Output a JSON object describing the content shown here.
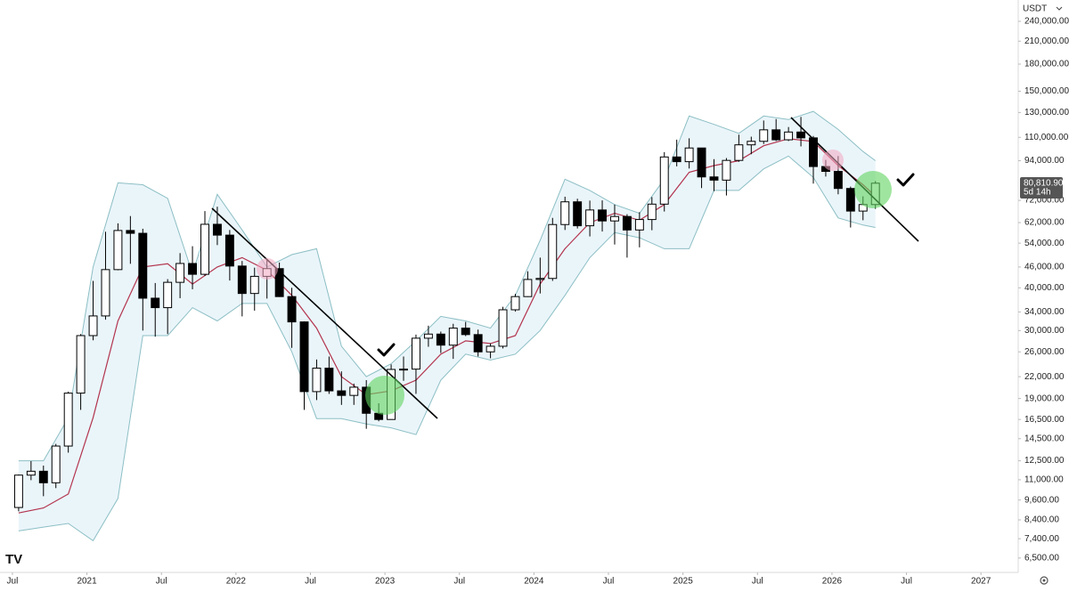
{
  "chart_data": {
    "type": "candlestick",
    "currency": "USDT",
    "log_scale": true,
    "up_color": "#ffffff",
    "down_color": "#000000",
    "last_price": {
      "value": 80810.9,
      "label": "80,810.90"
    },
    "countdown": "5d 14h",
    "xlim": [
      "2020-06",
      "2027-04"
    ],
    "ylim": [
      5900,
      277000
    ],
    "xticks": [
      {
        "value": "2020-07",
        "label": "Jul"
      },
      {
        "value": "2021-01",
        "label": "2021"
      },
      {
        "value": "2021-07",
        "label": "Jul"
      },
      {
        "value": "2022-01",
        "label": "2022"
      },
      {
        "value": "2022-07",
        "label": "Jul"
      },
      {
        "value": "2023-01",
        "label": "2023"
      },
      {
        "value": "2023-07",
        "label": "Jul"
      },
      {
        "value": "2024-01",
        "label": "2024"
      },
      {
        "value": "2024-07",
        "label": "Jul"
      },
      {
        "value": "2025-01",
        "label": "2025"
      },
      {
        "value": "2025-07",
        "label": "Jul"
      },
      {
        "value": "2026-01",
        "label": "2026"
      },
      {
        "value": "2026-07",
        "label": "Jul"
      },
      {
        "value": "2027-01",
        "label": "2027"
      }
    ],
    "yticks": [
      {
        "value": 240000,
        "label": "240,000.00"
      },
      {
        "value": 210000,
        "label": "210,000.00"
      },
      {
        "value": 180000,
        "label": "180,000.00"
      },
      {
        "value": 150000,
        "label": "150,000.00"
      },
      {
        "value": 130000,
        "label": "130,000.00"
      },
      {
        "value": 110000,
        "label": "110,000.00"
      },
      {
        "value": 94000,
        "label": "94,000.00"
      },
      {
        "value": 72000,
        "label": "72,000.00"
      },
      {
        "value": 62000,
        "label": "62,000.00"
      },
      {
        "value": 54000,
        "label": "54,000.00"
      },
      {
        "value": 46000,
        "label": "46,000.00"
      },
      {
        "value": 40000,
        "label": "40,000.00"
      },
      {
        "value": 34000,
        "label": "34,000.00"
      },
      {
        "value": 30000,
        "label": "30,000.00"
      },
      {
        "value": 26000,
        "label": "26,000.00"
      },
      {
        "value": 22000,
        "label": "22,000.00"
      },
      {
        "value": 19000,
        "label": "19,000.00"
      },
      {
        "value": 16500,
        "label": "16,500.00"
      },
      {
        "value": 14500,
        "label": "14,500.00"
      },
      {
        "value": 12500,
        "label": "12,500.00"
      },
      {
        "value": 11000,
        "label": "11,000.00"
      },
      {
        "value": 9600,
        "label": "9,600.00"
      },
      {
        "value": 8400,
        "label": "8,400.00"
      },
      {
        "value": 7400,
        "label": "7,400.00"
      },
      {
        "value": 6500,
        "label": "6,500.00"
      }
    ],
    "candles": {
      "x": [
        "2020-07",
        "2020-08",
        "2020-09",
        "2020-10",
        "2020-11",
        "2020-12",
        "2021-01",
        "2021-02",
        "2021-03",
        "2021-04",
        "2021-05",
        "2021-06",
        "2021-07",
        "2021-08",
        "2021-09",
        "2021-10",
        "2021-11",
        "2021-12",
        "2022-01",
        "2022-02",
        "2022-03",
        "2022-04",
        "2022-05",
        "2022-06",
        "2022-07",
        "2022-08",
        "2022-09",
        "2022-10",
        "2022-11",
        "2022-12",
        "2023-01",
        "2023-02",
        "2023-03",
        "2023-04",
        "2023-05",
        "2023-06",
        "2023-07",
        "2023-08",
        "2023-09",
        "2023-10",
        "2023-11",
        "2023-12",
        "2024-01",
        "2024-02",
        "2024-03",
        "2024-04",
        "2024-05",
        "2024-06",
        "2024-07",
        "2024-08",
        "2024-09",
        "2024-10",
        "2024-11",
        "2024-12",
        "2025-01",
        "2025-02",
        "2025-03",
        "2025-04",
        "2025-05",
        "2025-06",
        "2025-07",
        "2025-08",
        "2025-09",
        "2025-10",
        "2025-11",
        "2025-12",
        "2026-01",
        "2026-02",
        "2026-03",
        "2026-04"
      ],
      "open": [
        9130,
        11350,
        11650,
        10780,
        13800,
        19700,
        29000,
        33100,
        45200,
        58800,
        57700,
        37300,
        35000,
        41500,
        47100,
        43800,
        61300,
        57000,
        46300,
        38500,
        43200,
        45500,
        37700,
        31800,
        19900,
        23300,
        20000,
        19400,
        20500,
        17200,
        16500,
        23100,
        23150,
        28500,
        29300,
        27200,
        30500,
        29200,
        26000,
        27000,
        34500,
        37700,
        42300,
        42600,
        61200,
        71300,
        60700,
        67500,
        62700,
        64600,
        59000,
        63300,
        70200,
        96400,
        93400,
        102400,
        84300,
        82500,
        94200,
        104600,
        107100,
        115700,
        108200,
        114000,
        109600,
        90400,
        87500,
        78000,
        67000,
        70000
      ],
      "high": [
        11400,
        12470,
        12100,
        14000,
        19900,
        29300,
        41900,
        58300,
        61700,
        64800,
        59500,
        41300,
        42400,
        50500,
        52900,
        67000,
        69000,
        59000,
        47900,
        45800,
        48200,
        47400,
        40000,
        31900,
        24700,
        25200,
        22800,
        21000,
        21500,
        18400,
        23900,
        25200,
        29200,
        31000,
        29800,
        31400,
        31800,
        30200,
        27500,
        35200,
        38400,
        44700,
        49000,
        64000,
        73800,
        72800,
        71900,
        72000,
        70000,
        65600,
        66500,
        73600,
        99600,
        108300,
        109300,
        102500,
        95000,
        95700,
        112000,
        110500,
        123200,
        124400,
        117900,
        126200,
        111000,
        94500,
        97000,
        79000,
        74000,
        82000
      ],
      "low": [
        8900,
        10970,
        9850,
        10400,
        13200,
        17600,
        28100,
        32300,
        45000,
        47000,
        30000,
        28800,
        29300,
        37300,
        39600,
        43300,
        53300,
        42000,
        33000,
        34300,
        37200,
        37600,
        26700,
        17600,
        18800,
        19600,
        18200,
        18200,
        15500,
        16300,
        16500,
        21400,
        19600,
        26900,
        25800,
        24800,
        28900,
        25200,
        24900,
        26600,
        34100,
        37600,
        38500,
        41900,
        59000,
        59600,
        56500,
        58400,
        53500,
        49000,
        52500,
        58900,
        66800,
        90500,
        89200,
        78200,
        76600,
        74400,
        93300,
        98200,
        105200,
        107300,
        107300,
        103500,
        80600,
        84500,
        75000,
        60000,
        63000,
        68000
      ],
      "close": [
        11350,
        11650,
        10780,
        13800,
        19700,
        29000,
        33100,
        45200,
        58800,
        57700,
        37300,
        35000,
        41500,
        47100,
        43800,
        61300,
        57000,
        46300,
        38500,
        43200,
        45500,
        37700,
        31800,
        19900,
        23300,
        20000,
        19400,
        20500,
        17200,
        16500,
        23100,
        23150,
        28500,
        29300,
        27200,
        30500,
        29200,
        26000,
        27000,
        34500,
        37700,
        42300,
        42600,
        61200,
        71300,
        60700,
        67500,
        62700,
        64600,
        59000,
        63300,
        70200,
        96400,
        93400,
        102400,
        84300,
        82500,
        94200,
        104600,
        107100,
        115700,
        108200,
        114000,
        109600,
        90400,
        87500,
        78000,
        67000,
        70000,
        80810.9
      ]
    },
    "bands": {
      "fill": "#eaf5fa",
      "band_color": "#8cbfc4",
      "basis_color": "#b3344e",
      "x": [
        "2020-07",
        "2020-09",
        "2020-11",
        "2021-01",
        "2021-03",
        "2021-05",
        "2021-07",
        "2021-09",
        "2021-11",
        "2022-01",
        "2022-03",
        "2022-05",
        "2022-07",
        "2022-09",
        "2022-11",
        "2023-01",
        "2023-03",
        "2023-05",
        "2023-07",
        "2023-09",
        "2023-11",
        "2024-01",
        "2024-03",
        "2024-05",
        "2024-07",
        "2024-09",
        "2024-11",
        "2025-01",
        "2025-03",
        "2025-05",
        "2025-07",
        "2025-09",
        "2025-11",
        "2026-01",
        "2026-03",
        "2026-04"
      ],
      "upper": [
        12500,
        12500,
        16700,
        46000,
        81000,
        80000,
        73000,
        44000,
        75000,
        59000,
        46000,
        50000,
        52000,
        27000,
        22000,
        24000,
        28000,
        33000,
        32000,
        30500,
        38000,
        55000,
        83000,
        77000,
        70000,
        66000,
        83000,
        127000,
        120000,
        113000,
        127000,
        124000,
        131000,
        116000,
        100000,
        94000
      ],
      "basis": [
        8800,
        9100,
        10000,
        16700,
        32000,
        46000,
        47000,
        41000,
        46000,
        49000,
        45000,
        38000,
        30500,
        22000,
        19500,
        20000,
        21500,
        25600,
        28000,
        27500,
        29000,
        41000,
        52000,
        62000,
        66000,
        63000,
        70000,
        87000,
        91000,
        94000,
        104000,
        109000,
        107000,
        91000,
        80000,
        74000
      ],
      "lower": [
        7800,
        8000,
        8200,
        7300,
        9700,
        29000,
        29000,
        35000,
        32000,
        36000,
        36000,
        26000,
        16600,
        16600,
        16000,
        15600,
        14900,
        21500,
        25600,
        24600,
        25600,
        30000,
        38000,
        49000,
        58000,
        56000,
        52000,
        52000,
        77000,
        77000,
        89000,
        97000,
        84000,
        64000,
        61000,
        60000
      ]
    }
  }
}
